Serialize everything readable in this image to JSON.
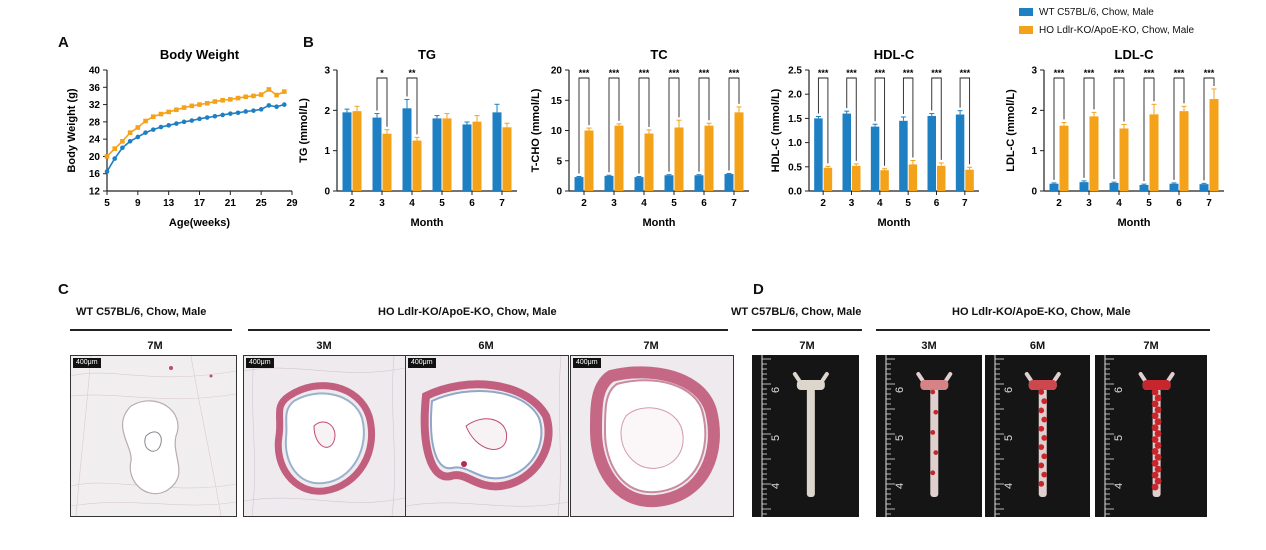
{
  "colors": {
    "wt": "#1f7fc3",
    "ho": "#f5a21b",
    "axis": "#222222"
  },
  "panel_letters": {
    "a": "A",
    "b": "B",
    "c": "C",
    "d": "D"
  },
  "legend": [
    {
      "label": "WT C57BL/6, Chow, Male",
      "color": "#1f7fc3"
    },
    {
      "label": "HO Ldlr-KO/ApoE-KO, Chow, Male",
      "color": "#f5a21b"
    }
  ],
  "chart_data": [
    {
      "id": "body-weight",
      "type": "line",
      "title": "Body Weight",
      "xlabel": "Age(weeks)",
      "ylabel": "Body Weight (g)",
      "xlim": [
        5,
        29
      ],
      "ylim": [
        12,
        40
      ],
      "xticks": [
        5,
        9,
        13,
        17,
        21,
        25,
        29
      ],
      "yticks": [
        12,
        16,
        20,
        24,
        28,
        32,
        36,
        40
      ],
      "x": [
        5,
        6,
        7,
        8,
        9,
        10,
        11,
        12,
        13,
        14,
        15,
        16,
        17,
        18,
        19,
        20,
        21,
        22,
        23,
        24,
        25,
        26,
        27,
        28
      ],
      "series": [
        {
          "name": "WT C57BL/6, Chow, Male",
          "values": [
            16.5,
            19.5,
            22.0,
            23.5,
            24.5,
            25.5,
            26.2,
            26.8,
            27.2,
            27.6,
            28.0,
            28.3,
            28.7,
            29.0,
            29.3,
            29.6,
            29.9,
            30.1,
            30.4,
            30.6,
            30.9,
            31.8,
            31.5,
            32.0
          ]
        },
        {
          "name": "HO Ldlr-KO/ApoE-KO, Chow, Male",
          "values": [
            20.0,
            21.8,
            23.5,
            25.5,
            26.7,
            28.2,
            29.2,
            29.8,
            30.3,
            30.8,
            31.3,
            31.7,
            32.0,
            32.3,
            32.7,
            33.0,
            33.2,
            33.5,
            33.8,
            34.0,
            34.3,
            35.5,
            34.2,
            35.0
          ]
        }
      ]
    },
    {
      "id": "tg",
      "type": "bar",
      "title": "TG",
      "xlabel": "Month",
      "ylabel": "TG (mmol/L)",
      "categories": [
        "2",
        "3",
        "4",
        "5",
        "6",
        "7"
      ],
      "ylim": [
        0,
        3
      ],
      "yticks": [
        0,
        1,
        2,
        3
      ],
      "series": [
        {
          "name": "WT C57BL/6, Chow, Male",
          "values": [
            1.95,
            1.82,
            2.05,
            1.8,
            1.65,
            1.95
          ],
          "errors": [
            0.08,
            0.1,
            0.22,
            0.07,
            0.06,
            0.2
          ]
        },
        {
          "name": "HO Ldlr-KO/ApoE-KO, Chow, Male",
          "values": [
            1.98,
            1.42,
            1.25,
            1.8,
            1.72,
            1.58
          ],
          "errors": [
            0.12,
            0.1,
            0.08,
            0.12,
            0.15,
            0.1
          ]
        }
      ],
      "significance": [
        {
          "category": "3",
          "label": "*"
        },
        {
          "category": "4",
          "label": "**"
        }
      ]
    },
    {
      "id": "tc",
      "type": "bar",
      "title": "TC",
      "xlabel": "Month",
      "ylabel": "T-CHO (mmol/L)",
      "categories": [
        "2",
        "3",
        "4",
        "5",
        "6",
        "7"
      ],
      "ylim": [
        0,
        20
      ],
      "yticks": [
        0,
        5,
        10,
        15,
        20
      ],
      "series": [
        {
          "name": "WT C57BL/6, Chow, Male",
          "values": [
            2.3,
            2.5,
            2.3,
            2.6,
            2.6,
            2.8
          ],
          "errors": [
            0.1,
            0.1,
            0.1,
            0.1,
            0.1,
            0.1
          ]
        },
        {
          "name": "HO Ldlr-KO/ApoE-KO, Chow, Male",
          "values": [
            10.0,
            10.8,
            9.5,
            10.5,
            10.8,
            13.0
          ],
          "errors": [
            0.4,
            0.3,
            0.6,
            1.2,
            0.4,
            0.9
          ]
        }
      ],
      "significance": [
        {
          "category": "2",
          "label": "***"
        },
        {
          "category": "3",
          "label": "***"
        },
        {
          "category": "4",
          "label": "***"
        },
        {
          "category": "5",
          "label": "***"
        },
        {
          "category": "6",
          "label": "***"
        },
        {
          "category": "7",
          "label": "***"
        }
      ]
    },
    {
      "id": "hdl",
      "type": "bar",
      "title": "HDL-C",
      "xlabel": "Month",
      "ylabel": "HDL-C (mmol/L)",
      "categories": [
        "2",
        "3",
        "4",
        "5",
        "6",
        "7"
      ],
      "ylim": [
        0,
        2.5
      ],
      "yticks": [
        0.0,
        0.5,
        1.0,
        1.5,
        2.0,
        2.5
      ],
      "ytick_labels": [
        "0.0",
        "0.5",
        "1.0",
        "1.5",
        "2.0",
        "2.5"
      ],
      "series": [
        {
          "name": "WT C57BL/6, Chow, Male",
          "values": [
            1.5,
            1.6,
            1.33,
            1.45,
            1.55,
            1.58
          ],
          "errors": [
            0.04,
            0.05,
            0.05,
            0.08,
            0.05,
            0.08
          ]
        },
        {
          "name": "HO Ldlr-KO/ApoE-KO, Chow, Male",
          "values": [
            0.48,
            0.52,
            0.43,
            0.55,
            0.52,
            0.44
          ],
          "errors": [
            0.03,
            0.04,
            0.03,
            0.08,
            0.06,
            0.05
          ]
        }
      ],
      "significance": [
        {
          "category": "2",
          "label": "***"
        },
        {
          "category": "3",
          "label": "***"
        },
        {
          "category": "4",
          "label": "***"
        },
        {
          "category": "5",
          "label": "***"
        },
        {
          "category": "6",
          "label": "***"
        },
        {
          "category": "7",
          "label": "***"
        }
      ]
    },
    {
      "id": "ldl",
      "type": "bar",
      "title": "LDL-C",
      "xlabel": "Month",
      "ylabel": "LDL-C (mmol/L)",
      "categories": [
        "2",
        "3",
        "4",
        "5",
        "6",
        "7"
      ],
      "ylim": [
        0,
        3
      ],
      "yticks": [
        0,
        1,
        2,
        3
      ],
      "series": [
        {
          "name": "WT C57BL/6, Chow, Male",
          "values": [
            0.18,
            0.22,
            0.2,
            0.15,
            0.18,
            0.17
          ],
          "errors": [
            0.02,
            0.03,
            0.02,
            0.02,
            0.02,
            0.02
          ]
        },
        {
          "name": "HO Ldlr-KO/ApoE-KO, Chow, Male",
          "values": [
            1.62,
            1.85,
            1.55,
            1.9,
            1.98,
            2.28
          ],
          "errors": [
            0.08,
            0.1,
            0.1,
            0.25,
            0.12,
            0.25
          ]
        }
      ],
      "significance": [
        {
          "category": "2",
          "label": "***"
        },
        {
          "category": "3",
          "label": "***"
        },
        {
          "category": "4",
          "label": "***"
        },
        {
          "category": "5",
          "label": "***"
        },
        {
          "category": "6",
          "label": "***"
        },
        {
          "category": "7",
          "label": "***"
        }
      ]
    }
  ],
  "panel_c": {
    "wt_header": "WT C57BL/6, Chow, Male",
    "ho_header": "HO Ldlr-KO/ApoE-KO, Chow, Male",
    "scale_bar": "400μm",
    "images": [
      {
        "time": "7M",
        "group": "WT",
        "stained": false
      },
      {
        "time": "3M",
        "group": "HO",
        "stained": true
      },
      {
        "time": "6M",
        "group": "HO",
        "stained": true
      },
      {
        "time": "7M",
        "group": "HO",
        "stained": true
      }
    ]
  },
  "panel_d": {
    "wt_header": "WT C57BL/6, Chow, Male",
    "ho_header": "HO Ldlr-KO/ApoE-KO, Chow, Male",
    "ruler_labels": [
      "6",
      "5",
      "4"
    ],
    "images": [
      {
        "time": "7M",
        "group": "WT",
        "lesion": 0
      },
      {
        "time": "3M",
        "group": "HO",
        "lesion": 0.25
      },
      {
        "time": "6M",
        "group": "HO",
        "lesion": 0.6
      },
      {
        "time": "7M",
        "group": "HO",
        "lesion": 0.95
      }
    ]
  }
}
